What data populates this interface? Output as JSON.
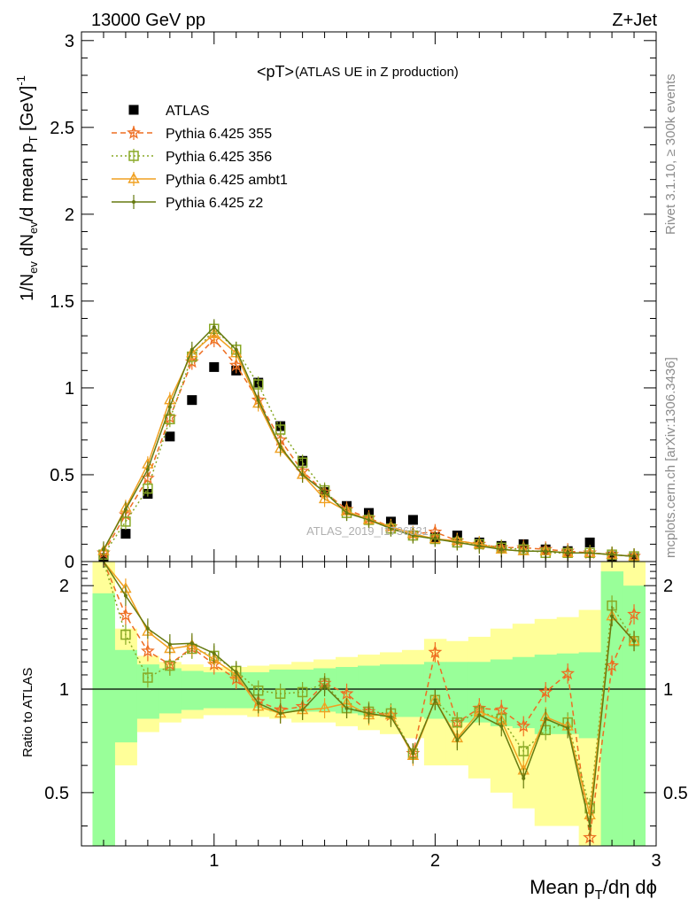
{
  "header": {
    "left": "13000 GeV pp",
    "right": "Z+Jet"
  },
  "side_text": {
    "top": "Rivet 3.1.10, ≥ 300k events",
    "bottom": "mcplots.cern.ch [arXiv:1306.3436]"
  },
  "watermark": "ATLAS_2019_I1736531",
  "colors": {
    "atlas": "#000000",
    "p355": "#ee6e22",
    "p356": "#88a825",
    "ambt1": "#f0a020",
    "z2": "#667a10",
    "band_inner": "#99ff99",
    "band_outer": "#ffff99"
  },
  "chart_data": [
    {
      "type": "scatter",
      "plot_title": "<pT>",
      "plot_title_suffix": "(ATLAS UE in Z production)",
      "xlabel": "Mean p_T/dη dϕ",
      "ylabel": "1/N_ev dN_ev/d mean p_T [GeV]^-1",
      "xlim": [
        0.4,
        3.0
      ],
      "ylim": [
        0,
        3.05
      ],
      "yticks": [
        "0",
        "0.5",
        "1",
        "1.5",
        "2",
        "2.5",
        "3"
      ],
      "xticks": [
        "1",
        "2",
        "3"
      ],
      "legend_position": "top-left",
      "x": [
        0.5,
        0.6,
        0.7,
        0.8,
        0.9,
        1.0,
        1.1,
        1.2,
        1.3,
        1.4,
        1.5,
        1.6,
        1.7,
        1.8,
        1.9,
        2.0,
        2.1,
        2.2,
        2.3,
        2.4,
        2.5,
        2.6,
        2.7,
        2.8,
        2.9
      ],
      "series": [
        {
          "name": "ATLAS",
          "marker": "square",
          "values": [
            0.02,
            0.16,
            0.39,
            0.72,
            0.93,
            1.12,
            1.1,
            1.03,
            0.78,
            0.58,
            0.4,
            0.32,
            0.28,
            0.23,
            0.24,
            0.14,
            0.15,
            0.11,
            0.09,
            0.1,
            0.07,
            0.06,
            0.11,
            0.03,
            0.02
          ]
        },
        {
          "name": "Pythia 6.425 355",
          "marker": "star",
          "dash": "6,4",
          "values": [
            0.05,
            0.27,
            0.48,
            0.83,
            1.15,
            1.28,
            1.13,
            0.93,
            0.7,
            0.52,
            0.4,
            0.3,
            0.25,
            0.2,
            0.16,
            0.17,
            0.12,
            0.1,
            0.08,
            0.08,
            0.07,
            0.06,
            0.05,
            0.04,
            0.03
          ]
        },
        {
          "name": "Pythia 6.425 356",
          "marker": "open-square",
          "dash": "2,3",
          "values": [
            0.04,
            0.23,
            0.42,
            0.82,
            1.18,
            1.34,
            1.22,
            1.02,
            0.76,
            0.57,
            0.41,
            0.28,
            0.24,
            0.19,
            0.15,
            0.13,
            0.11,
            0.1,
            0.08,
            0.07,
            0.05,
            0.05,
            0.05,
            0.04,
            0.03
          ]
        },
        {
          "name": "Pythia 6.425 ambt1",
          "marker": "open-triangle",
          "dash": "",
          "values": [
            0.06,
            0.31,
            0.56,
            0.93,
            1.2,
            1.31,
            1.2,
            0.91,
            0.65,
            0.5,
            0.36,
            0.29,
            0.24,
            0.2,
            0.16,
            0.13,
            0.12,
            0.1,
            0.07,
            0.06,
            0.06,
            0.05,
            0.05,
            0.04,
            0.03
          ]
        },
        {
          "name": "Pythia 6.425 z2",
          "marker": "dot",
          "dash": "",
          "values": [
            0.07,
            0.3,
            0.53,
            0.89,
            1.22,
            1.35,
            1.22,
            0.93,
            0.66,
            0.5,
            0.4,
            0.28,
            0.24,
            0.19,
            0.15,
            0.13,
            0.11,
            0.09,
            0.07,
            0.06,
            0.06,
            0.05,
            0.05,
            0.04,
            0.03
          ]
        }
      ]
    },
    {
      "type": "line",
      "ylabel": "Ratio to ATLAS",
      "xlim": [
        0.4,
        3.0
      ],
      "ylim": [
        0.35,
        2.35
      ],
      "yticks": [
        "0.5",
        "1",
        "2"
      ],
      "reference_line": 1.0,
      "x": [
        0.5,
        0.6,
        0.7,
        0.8,
        0.9,
        1.0,
        1.1,
        1.2,
        1.3,
        1.4,
        1.5,
        1.6,
        1.7,
        1.8,
        1.9,
        2.0,
        2.1,
        2.2,
        2.3,
        2.4,
        2.5,
        2.6,
        2.7,
        2.8,
        2.9
      ],
      "band_inner": [
        [
          0.35,
          1.9
        ],
        [
          0.7,
          1.3
        ],
        [
          0.82,
          1.18
        ],
        [
          0.85,
          1.15
        ],
        [
          0.87,
          1.13
        ],
        [
          0.88,
          1.12
        ],
        [
          0.88,
          1.12
        ],
        [
          0.88,
          1.12
        ],
        [
          0.86,
          1.14
        ],
        [
          0.86,
          1.14
        ],
        [
          0.86,
          1.15
        ],
        [
          0.85,
          1.16
        ],
        [
          0.84,
          1.17
        ],
        [
          0.83,
          1.18
        ],
        [
          0.83,
          1.18
        ],
        [
          0.82,
          1.2
        ],
        [
          0.8,
          1.2
        ],
        [
          0.8,
          1.2
        ],
        [
          0.78,
          1.22
        ],
        [
          0.77,
          1.24
        ],
        [
          0.74,
          1.26
        ],
        [
          0.74,
          1.27
        ],
        [
          0.72,
          1.28
        ],
        [
          0.35,
          2.2
        ],
        [
          0.35,
          2.0
        ]
      ],
      "band_outer": [
        [
          0.35,
          2.35
        ],
        [
          0.6,
          1.5
        ],
        [
          0.75,
          1.25
        ],
        [
          0.8,
          1.2
        ],
        [
          0.82,
          1.18
        ],
        [
          0.84,
          1.16
        ],
        [
          0.84,
          1.16
        ],
        [
          0.83,
          1.17
        ],
        [
          0.82,
          1.18
        ],
        [
          0.8,
          1.2
        ],
        [
          0.8,
          1.22
        ],
        [
          0.78,
          1.24
        ],
        [
          0.76,
          1.26
        ],
        [
          0.74,
          1.28
        ],
        [
          0.72,
          1.3
        ],
        [
          0.6,
          1.4
        ],
        [
          0.6,
          1.38
        ],
        [
          0.55,
          1.42
        ],
        [
          0.5,
          1.5
        ],
        [
          0.45,
          1.55
        ],
        [
          0.4,
          1.6
        ],
        [
          0.4,
          1.62
        ],
        [
          0.35,
          1.7
        ],
        [
          0.35,
          2.35
        ],
        [
          0.35,
          2.35
        ]
      ],
      "series": [
        {
          "name": "Pythia 6.425 355",
          "values": [
            3.2,
            1.64,
            1.29,
            1.18,
            1.32,
            1.18,
            1.07,
            0.92,
            0.87,
            0.89,
            1.04,
            0.97,
            0.86,
            0.84,
            0.65,
            1.28,
            0.8,
            0.88,
            0.87,
            0.78,
            0.98,
            1.11,
            0.37,
            1.17,
            1.65
          ]
        },
        {
          "name": "Pythia 6.425 356",
          "values": [
            2.6,
            1.44,
            1.08,
            1.17,
            1.31,
            1.25,
            1.13,
            0.99,
            0.97,
            0.98,
            1.04,
            0.88,
            0.86,
            0.85,
            0.65,
            0.93,
            0.8,
            0.86,
            0.82,
            0.66,
            0.76,
            0.8,
            0.45,
            1.75,
            1.38
          ]
        },
        {
          "name": "Pythia 6.425 ambt1",
          "values": [
            3.5,
            1.96,
            1.47,
            1.31,
            1.34,
            1.22,
            1.1,
            0.89,
            0.85,
            0.87,
            0.88,
            0.91,
            0.84,
            0.84,
            0.64,
            0.93,
            0.72,
            0.86,
            0.81,
            0.58,
            0.83,
            0.78,
            0.43,
            1.63,
            1.38
          ]
        },
        {
          "name": "Pythia 6.425 z2",
          "values": [
            3.6,
            1.87,
            1.5,
            1.35,
            1.36,
            1.27,
            1.12,
            0.91,
            0.85,
            0.87,
            1.02,
            0.88,
            0.85,
            0.83,
            0.65,
            0.93,
            0.71,
            0.84,
            0.78,
            0.55,
            0.82,
            0.77,
            0.4,
            1.63,
            1.38
          ]
        }
      ]
    }
  ]
}
